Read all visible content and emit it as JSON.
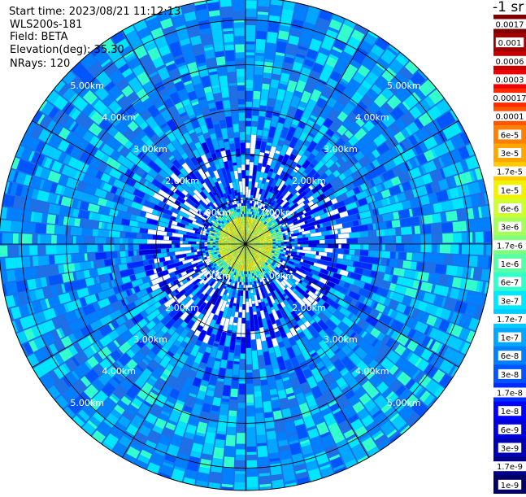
{
  "header": {
    "start_time": "Start time: 2023/08/21 11:12:13",
    "instrument": "WLS200s-181",
    "field": "Field: BETA",
    "elevation": "Elevation(deg): 35.30",
    "nrays": "NRays: 120",
    "unit": "-1 sr"
  },
  "chart_data": {
    "type": "heatmap",
    "projection": "polar PPI",
    "max_range_km": 5.5,
    "ring_labels": [
      "1.00km",
      "2.00km",
      "3.00km",
      "4.00km",
      "5.00km"
    ],
    "ring_label_azimuths_deg": [
      45,
      135,
      225,
      315
    ],
    "n_rays": 120,
    "colorbar": {
      "labels": [
        "0.0017",
        "0.001",
        "0.0006",
        "0.0003",
        "0.00017",
        "0.0001",
        "6e-5",
        "3e-5",
        "1.7e-5",
        "1e-5",
        "6e-6",
        "3e-6",
        "1.7e-6",
        "1e-6",
        "6e-7",
        "3e-7",
        "1.7e-7",
        "1e-7",
        "6e-8",
        "3e-8",
        "1.7e-8",
        "1e-8",
        "6e-9",
        "3e-9",
        "1.7e-9",
        "1e-9"
      ],
      "colors": [
        "#800000",
        "#a00000",
        "#c80000",
        "#f00000",
        "#ff2a00",
        "#ff5500",
        "#ff8000",
        "#ffa600",
        "#ffcc00",
        "#f2f200",
        "#ccff33",
        "#a6ff59",
        "#80ff80",
        "#59ffa6",
        "#33ffcc",
        "#00e6ff",
        "#00ccff",
        "#00a6ff",
        "#0080ff",
        "#0055ff",
        "#002aff",
        "#0000ff",
        "#0000d9",
        "#0000b3",
        "#00008c",
        "#000066"
      ]
    }
  }
}
